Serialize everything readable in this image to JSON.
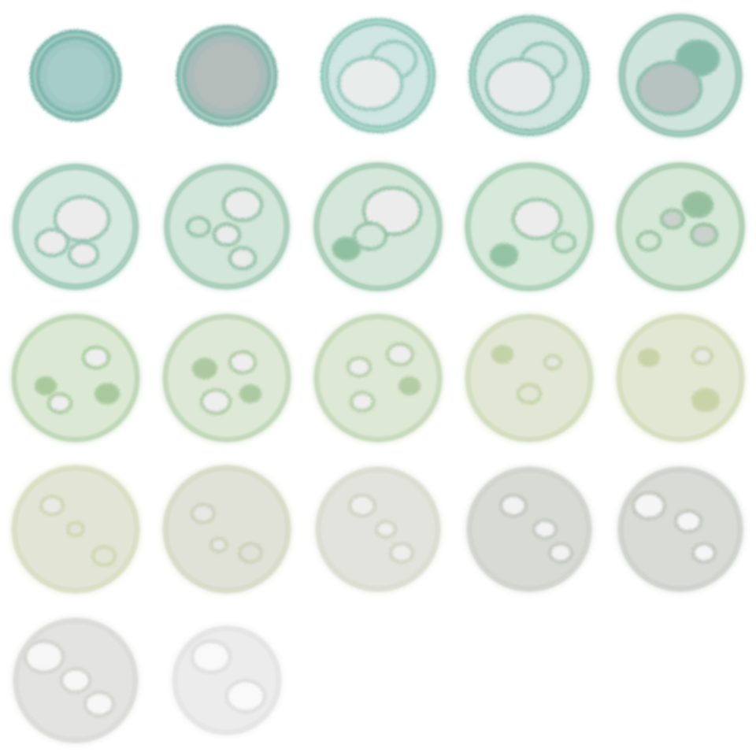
{
  "sprite_sheet": {
    "columns": 5,
    "rows": 5,
    "frame_count": 22,
    "frames": [
      {
        "name": "frame-01",
        "tint": "#9fc9c6",
        "core": "#a7cdca",
        "ring": "#7fb7ad",
        "stage": "burst-small"
      },
      {
        "name": "frame-02",
        "tint": "#a9bcb8",
        "core": "#b5bdbb",
        "ring": "#86b8ab",
        "stage": "burst-small"
      },
      {
        "name": "frame-03",
        "tint": "#cfe6e2",
        "core": "#e8eceb",
        "ring": "#8ec6b8",
        "stage": "sphere-forming"
      },
      {
        "name": "frame-04",
        "tint": "#d0e5df",
        "core": "#e6eaea",
        "ring": "#86bfae",
        "stage": "sphere-forming"
      },
      {
        "name": "frame-05",
        "tint": "#cfe4dd",
        "core": "#b6c3c0",
        "ring": "#86bba9",
        "stage": "sphere-forming"
      },
      {
        "name": "frame-06",
        "tint": "#d6e9e1",
        "core": "#ececec",
        "ring": "#8cc0aa",
        "stage": "sphere-patterned"
      },
      {
        "name": "frame-07",
        "tint": "#d2e6d9",
        "core": "#e9ecea",
        "ring": "#8ebfa4",
        "stage": "sphere-patterned"
      },
      {
        "name": "frame-08",
        "tint": "#d4e7da",
        "core": "#ececec",
        "ring": "#8fc0a2",
        "stage": "sphere-patterned"
      },
      {
        "name": "frame-09",
        "tint": "#d6e9da",
        "core": "#ececec",
        "ring": "#93c3a3",
        "stage": "sphere-patterned"
      },
      {
        "name": "frame-10",
        "tint": "#d5e8d7",
        "core": "#c9d2cc",
        "ring": "#95c09f",
        "stage": "sphere-patterned"
      },
      {
        "name": "frame-11",
        "tint": "#dbe9d4",
        "core": "#eeeeee",
        "ring": "#a7c99c",
        "stage": "sphere-fading"
      },
      {
        "name": "frame-12",
        "tint": "#dde9d6",
        "core": "#eeeeee",
        "ring": "#acc9a1",
        "stage": "sphere-fading"
      },
      {
        "name": "frame-13",
        "tint": "#dde8d5",
        "core": "#eeeeee",
        "ring": "#b3cca3",
        "stage": "sphere-fading"
      },
      {
        "name": "frame-14",
        "tint": "#e1e7d4",
        "core": "#e5e8e2",
        "ring": "#c3d2a8",
        "stage": "sphere-fading"
      },
      {
        "name": "frame-15",
        "tint": "#e2e7d3",
        "core": "#e6e8e2",
        "ring": "#c8d3a8",
        "stage": "sphere-fading"
      },
      {
        "name": "frame-16",
        "tint": "#e2e5d6",
        "core": "#e9eae6",
        "ring": "#cdd4b0",
        "stage": "sphere-desaturating"
      },
      {
        "name": "frame-17",
        "tint": "#e0e2d8",
        "core": "#e7e8e4",
        "ring": "#cbd0b6",
        "stage": "sphere-desaturating"
      },
      {
        "name": "frame-18",
        "tint": "#e2e3dd",
        "core": "#eeeeec",
        "ring": "#cfd2c2",
        "stage": "sphere-desaturating"
      },
      {
        "name": "frame-19",
        "tint": "#d8dad4",
        "core": "#f2f2f2",
        "ring": "#c2c6bd",
        "stage": "sphere-gray"
      },
      {
        "name": "frame-20",
        "tint": "#d9dbd6",
        "core": "#f5f5f5",
        "ring": "#c0c4bc",
        "stage": "sphere-gray"
      },
      {
        "name": "frame-21",
        "tint": "#e3e3e1",
        "core": "#f7f7f7",
        "ring": "#cfd0cc",
        "stage": "sphere-dissolving"
      },
      {
        "name": "frame-22",
        "tint": "#ececec",
        "core": "#f9f9f9",
        "ring": "#dcdcdc",
        "stage": "sphere-dissolving"
      }
    ]
  }
}
